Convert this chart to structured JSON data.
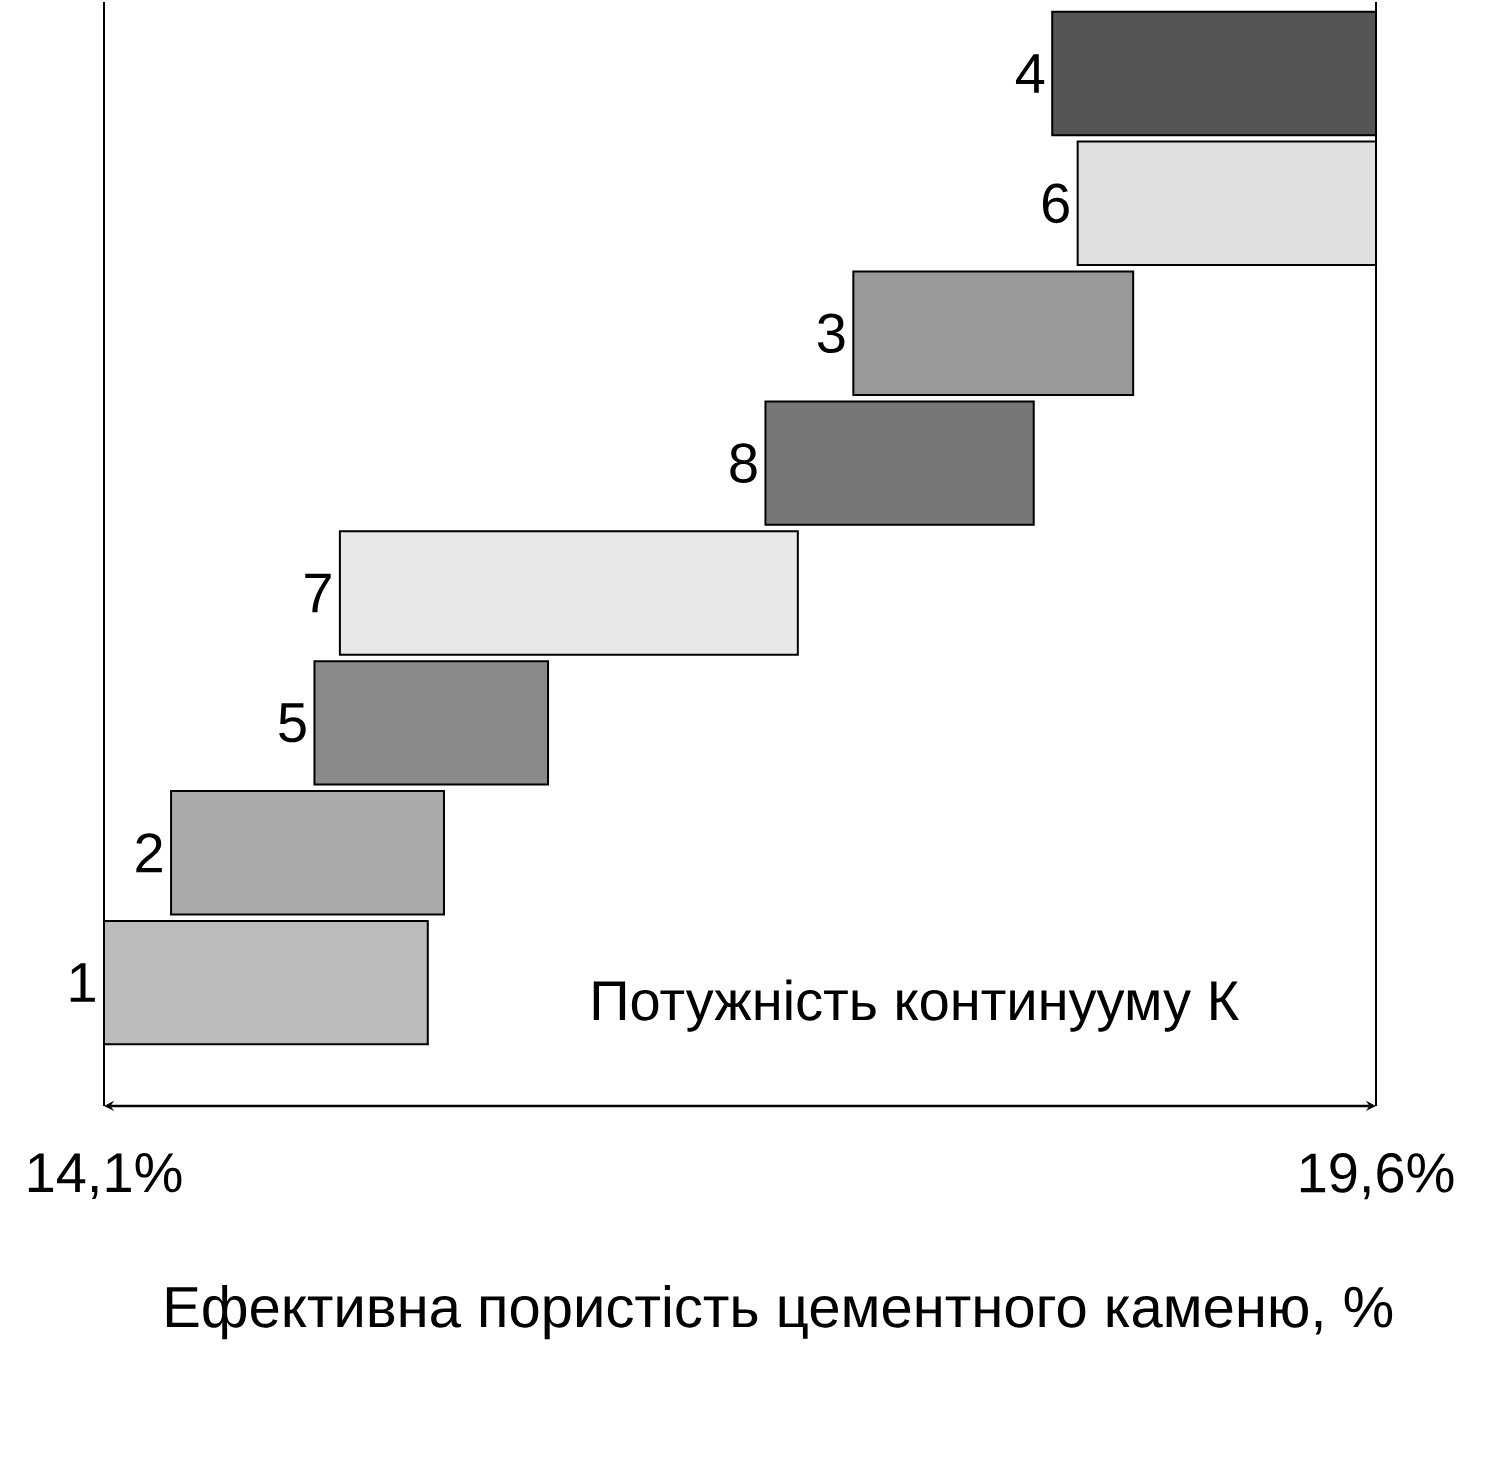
{
  "chart_data": {
    "type": "bar",
    "orientation": "horizontal",
    "categories": [
      "4",
      "6",
      "3",
      "8",
      "7",
      "5",
      "2",
      "1"
    ],
    "base": [
      18.2,
      18.31,
      17.34,
      16.96,
      15.12,
      15.01,
      14.39,
      14.1
    ],
    "values": [
      1.4,
      1.29,
      1.21,
      1.16,
      1.98,
      1.01,
      1.18,
      1.4
    ],
    "colors": [
      "#555555",
      "#e0e0e0",
      "#999999",
      "#777777",
      "#e8e8e8",
      "#8a8a8a",
      "#aaaaaa",
      "#bbbbbb"
    ],
    "xlim": [
      14.1,
      19.6
    ],
    "xticks": [
      {
        "value": 14.1,
        "label": "14,1%"
      },
      {
        "value": 19.6,
        "label": "19,6%"
      }
    ],
    "xlabel": "Ефективна пористість цементного каменю, %",
    "annotations": [
      "Потужність континууму К"
    ],
    "ref_lines": [
      {
        "axis": "x",
        "value": 14.1
      },
      {
        "axis": "x",
        "value": 19.6
      }
    ]
  }
}
